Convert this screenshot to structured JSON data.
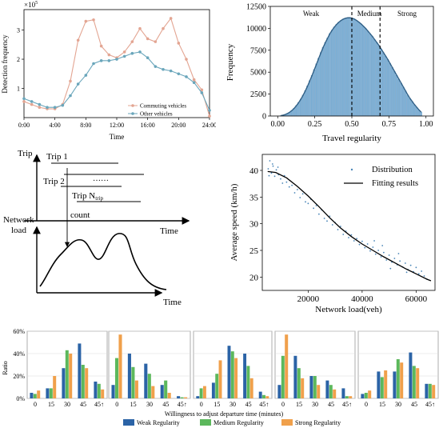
{
  "chart_data": [
    {
      "id": "detection",
      "type": "line",
      "ylabel": "Detection frequency",
      "xlabel": "Time",
      "exponent_label": "×10",
      "exponent_power": "5",
      "xlim": [
        0,
        24
      ],
      "ylim": [
        0,
        3.7
      ],
      "x_ticks": [
        0,
        4,
        8,
        12,
        16,
        20,
        24
      ],
      "x_tick_labels": [
        "0:00",
        "4:00",
        "8:00",
        "12:00",
        "16:00",
        "20:00",
        "24:00"
      ],
      "y_ticks": [
        1,
        2,
        3
      ],
      "y_tick_labels": [
        "1",
        "2",
        "3"
      ],
      "x": [
        0,
        1,
        2,
        3,
        4,
        5,
        6,
        7,
        8,
        9,
        10,
        11,
        12,
        13,
        14,
        15,
        16,
        17,
        18,
        19,
        20,
        21,
        22,
        23,
        24
      ],
      "series": [
        {
          "name": "Commuting vehicles",
          "color": "#e3a592",
          "values": [
            0.55,
            0.45,
            0.35,
            0.3,
            0.3,
            0.45,
            1.25,
            2.65,
            3.3,
            3.35,
            2.45,
            2.15,
            2.05,
            2.25,
            2.6,
            3.05,
            2.7,
            2.6,
            3.05,
            3.4,
            2.55,
            2.0,
            1.3,
            0.95,
            0.05
          ]
        },
        {
          "name": "Other vehicles",
          "color": "#6aa6bb",
          "values": [
            0.65,
            0.55,
            0.45,
            0.35,
            0.35,
            0.42,
            0.75,
            1.15,
            1.45,
            1.85,
            1.95,
            1.95,
            2.0,
            2.1,
            2.2,
            2.25,
            2.05,
            1.75,
            1.65,
            1.6,
            1.5,
            1.4,
            1.2,
            0.85,
            0.25
          ]
        }
      ],
      "legend_position": "bottom-right"
    },
    {
      "id": "regularity",
      "type": "bar",
      "xlabel": "Travel regularity",
      "ylabel": "Frequency",
      "xlim": [
        0,
        1
      ],
      "ylim": [
        0,
        12500
      ],
      "x_ticks": [
        0,
        0.25,
        0.5,
        0.75,
        1
      ],
      "x_tick_labels": [
        "0.00",
        "0.25",
        "0.50",
        "0.75",
        "1.00"
      ],
      "y_ticks": [
        0,
        2500,
        5000,
        7500,
        10000,
        12500
      ],
      "y_tick_labels": [
        "0",
        "2500",
        "5000",
        "7500",
        "10000",
        "12500"
      ],
      "bins_start": 0.015,
      "bins_width": 0.015,
      "values": [
        50,
        100,
        180,
        300,
        450,
        650,
        900,
        1200,
        1550,
        1950,
        2400,
        2900,
        3450,
        4050,
        4650,
        5300,
        5950,
        6600,
        7250,
        7850,
        8400,
        8900,
        9400,
        9800,
        10150,
        10450,
        10700,
        10900,
        11050,
        11150,
        11200,
        11200,
        11150,
        11050,
        10900,
        10700,
        10500,
        10250,
        10000,
        9700,
        9400,
        9100,
        8750,
        8400,
        8050,
        7650,
        7250,
        6850,
        6450,
        6000,
        5550,
        5100,
        4650,
        4200,
        3750,
        3300,
        2850,
        2400,
        2000,
        1650,
        1300,
        1000,
        700,
        450
      ],
      "bar_color": "#7fb0d5",
      "curve_color": "#2f5f86",
      "thresholds": [
        0.5,
        0.69
      ],
      "regions": [
        "Weak",
        "Medium",
        "Strong"
      ]
    },
    {
      "id": "speed",
      "type": "scatter",
      "xlabel": "Network load(veh)",
      "ylabel": "Average speed (km/h)",
      "xlim": [
        3000,
        67000
      ],
      "ylim": [
        17.5,
        43
      ],
      "x_ticks": [
        20000,
        40000,
        60000
      ],
      "x_tick_labels": [
        "20000",
        "40000",
        "60000"
      ],
      "y_ticks": [
        20,
        25,
        30,
        35,
        40
      ],
      "y_tick_labels": [
        "20",
        "25",
        "30",
        "35",
        "40"
      ],
      "points": [
        [
          5200,
          40.3
        ],
        [
          5800,
          41.8
        ],
        [
          6400,
          39.5
        ],
        [
          7000,
          40.8
        ],
        [
          7600,
          38.9
        ],
        [
          8200,
          40.1
        ],
        [
          9000,
          39.2
        ],
        [
          9800,
          38.4
        ],
        [
          10500,
          37.6
        ],
        [
          11200,
          39.0
        ],
        [
          12000,
          37.8
        ],
        [
          13000,
          36.9
        ],
        [
          14000,
          37.2
        ],
        [
          15000,
          35.8
        ],
        [
          16000,
          36.4
        ],
        [
          17000,
          34.9
        ],
        [
          18000,
          35.6
        ],
        [
          19000,
          34.1
        ],
        [
          20000,
          33.8
        ],
        [
          21000,
          34.6
        ],
        [
          22000,
          32.9
        ],
        [
          23000,
          33.4
        ],
        [
          24000,
          31.8
        ],
        [
          25000,
          32.6
        ],
        [
          26000,
          31.0
        ],
        [
          27000,
          30.5
        ],
        [
          28000,
          31.4
        ],
        [
          29000,
          29.8
        ],
        [
          30000,
          30.2
        ],
        [
          31000,
          28.9
        ],
        [
          32000,
          29.5
        ],
        [
          33000,
          28.0
        ],
        [
          34000,
          28.6
        ],
        [
          35000,
          27.4
        ],
        [
          36000,
          27.9
        ],
        [
          37000,
          26.8
        ],
        [
          38000,
          27.2
        ],
        [
          39000,
          26.1
        ],
        [
          40000,
          26.7
        ],
        [
          41000,
          25.5
        ],
        [
          42000,
          26.2
        ],
        [
          43000,
          24.9
        ],
        [
          44000,
          25.6
        ],
        [
          45000,
          24.3
        ],
        [
          46000,
          25.0
        ],
        [
          47000,
          23.8
        ],
        [
          48000,
          24.6
        ],
        [
          49000,
          23.2
        ],
        [
          50000,
          24.1
        ],
        [
          51000,
          22.8
        ],
        [
          52000,
          23.5
        ],
        [
          53000,
          22.3
        ],
        [
          54000,
          23.0
        ],
        [
          55000,
          21.9
        ],
        [
          56000,
          22.6
        ],
        [
          57000,
          21.4
        ],
        [
          58000,
          22.2
        ],
        [
          59000,
          21.0
        ],
        [
          60000,
          21.8
        ],
        [
          61000,
          20.6
        ],
        [
          62000,
          21.1
        ],
        [
          63000,
          20.2
        ],
        [
          64000,
          19.6
        ],
        [
          5500,
          39.0
        ],
        [
          6800,
          41.2
        ],
        [
          8800,
          40.6
        ],
        [
          44500,
          26.8
        ],
        [
          47500,
          25.9
        ],
        [
          50500,
          21.6
        ],
        [
          53500,
          24.4
        ],
        [
          56500,
          20.9
        ]
      ],
      "fit_x": [
        5000,
        8000,
        12000,
        16000,
        20000,
        24000,
        28000,
        32000,
        36000,
        40000,
        44000,
        48000,
        52000,
        56000,
        60000,
        64000,
        65500
      ],
      "fit_y": [
        39.8,
        39.6,
        38.6,
        37.0,
        35.2,
        33.2,
        31.1,
        29.2,
        27.6,
        26.2,
        25.0,
        23.8,
        22.7,
        21.6,
        20.6,
        19.6,
        19.3
      ],
      "series": [
        {
          "name": "Distribution",
          "color": "#4a86b8"
        },
        {
          "name": "Fitting results",
          "color": "#000000"
        }
      ],
      "legend_position": "top-right"
    },
    {
      "id": "willingness",
      "type": "bar",
      "ylabel": "Ratio",
      "xlabel": "Willingness to adjust departure time (minutes)",
      "ylim": [
        0,
        0.6
      ],
      "y_ticks": [
        0,
        0.2,
        0.4,
        0.6
      ],
      "y_tick_labels": [
        "0%",
        "20%",
        "40%",
        "60%"
      ],
      "categories": [
        "0",
        "15",
        "30",
        "45",
        "45↑"
      ],
      "series": [
        {
          "name": "Weak Regularity",
          "color": "#2b63a6"
        },
        {
          "name": "Medium Regularity",
          "color": "#5cb85c"
        },
        {
          "name": "Strong Regularity",
          "color": "#f0a04b"
        }
      ],
      "panels": [
        {
          "weak": [
            0.05,
            0.09,
            0.27,
            0.49,
            0.15
          ],
          "medium": [
            0.04,
            0.09,
            0.43,
            0.3,
            0.13
          ],
          "strong": [
            0.07,
            0.2,
            0.4,
            0.27,
            0.08
          ]
        },
        {
          "weak": [
            0.12,
            0.4,
            0.31,
            0.12,
            0.02
          ],
          "medium": [
            0.36,
            0.28,
            0.22,
            0.16,
            0.01
          ],
          "strong": [
            0.57,
            0.16,
            0.11,
            0.05,
            0.01
          ]
        },
        {
          "weak": [
            0.02,
            0.14,
            0.47,
            0.4,
            0.06
          ],
          "medium": [
            0.09,
            0.22,
            0.42,
            0.29,
            0.03
          ],
          "strong": [
            0.11,
            0.34,
            0.36,
            0.18,
            0.02
          ]
        },
        {
          "weak": [
            0.12,
            0.38,
            0.2,
            0.16,
            0.09
          ],
          "medium": [
            0.38,
            0.27,
            0.2,
            0.12,
            0.02
          ],
          "strong": [
            0.57,
            0.18,
            0.12,
            0.08,
            0.02
          ]
        },
        {
          "weak": [
            0.04,
            0.24,
            0.24,
            0.41,
            0.13
          ],
          "medium": [
            0.05,
            0.19,
            0.35,
            0.29,
            0.13
          ],
          "strong": [
            0.07,
            0.25,
            0.32,
            0.27,
            0.12
          ]
        }
      ]
    }
  ],
  "diagram": {
    "axis_trip": "Trip",
    "axis_time_top": "Time",
    "axis_network_load": "Network",
    "axis_network_load_2": "load",
    "axis_time_bottom": "Time",
    "trip1": "Trip 1",
    "trip2": "Trip 2",
    "dots": "……",
    "tripN": "Trip N",
    "tripN_sub": "trip",
    "count": "count"
  }
}
